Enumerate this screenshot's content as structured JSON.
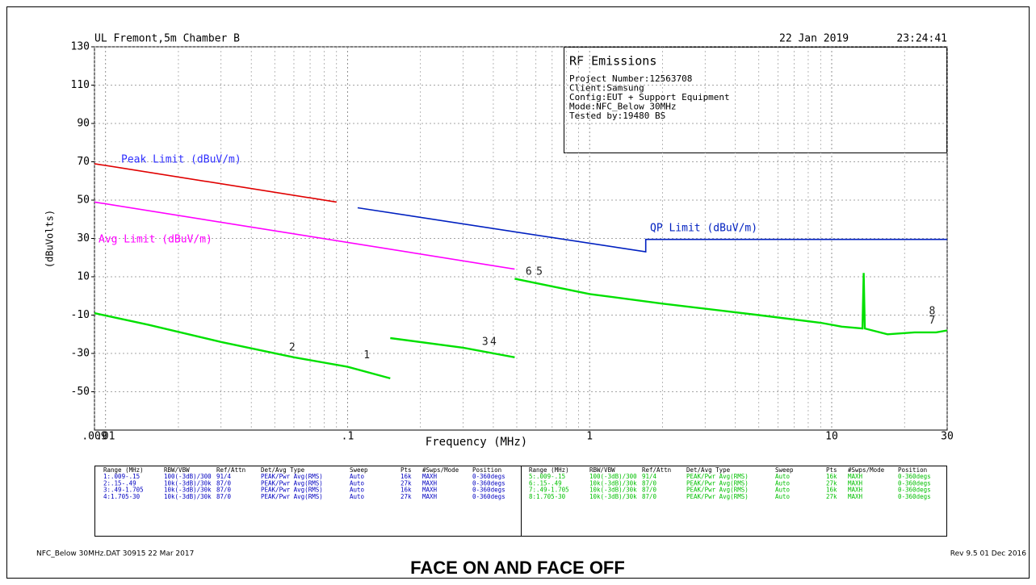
{
  "chart_data": {
    "type": "line",
    "x_label": "Frequency (MHz)",
    "y_label": "(dBuVolts)",
    "log_x": true,
    "grid": true,
    "xlim": [
      0.009,
      30
    ],
    "ylim": [
      -70,
      130
    ],
    "xticks": [
      {
        "value": 0.009,
        "label": ".009"
      },
      {
        "value": 0.01,
        "label": ".01"
      },
      {
        "value": 0.1,
        "label": ".1"
      },
      1,
      10,
      30
    ],
    "yticks": [
      130,
      110,
      90,
      70,
      50,
      30,
      10,
      -10,
      -30,
      -50
    ],
    "series": [
      {
        "name": "Peak Limit (dBuV/m)",
        "color": "#e00000",
        "label_color": "#3030ff",
        "x": [
          0.009,
          0.09
        ],
        "values": [
          69,
          49
        ]
      },
      {
        "name": "Avg Limit (dBuV/m)",
        "color": "#ff00ff",
        "label_color": "#ff00ff",
        "x": [
          0.009,
          0.49
        ],
        "values": [
          49,
          14
        ]
      },
      {
        "name": "QP Limit (dBuV/m)",
        "color": "#0020c0",
        "label_color": "#0020c0",
        "x": [
          0.11,
          1.705,
          1.705,
          30
        ],
        "values": [
          46,
          23,
          29.5,
          29.5
        ]
      },
      {
        "color": "#00e000",
        "x": [
          0.009,
          0.015,
          0.03,
          0.06,
          0.1,
          0.15,
          null,
          0.15,
          0.3,
          0.49,
          null,
          0.49,
          1,
          2,
          5,
          9,
          11,
          13.4,
          13.56,
          13.7,
          17,
          22,
          27,
          30
        ],
        "values": [
          -9,
          -15,
          -24,
          -32,
          -37,
          -43,
          null,
          -22,
          -27,
          -32,
          null,
          9,
          1,
          -4,
          -10,
          -14,
          -16,
          -17,
          12,
          -17,
          -20,
          -19,
          -19,
          -18
        ]
      }
    ],
    "markers": [
      {
        "label": "1",
        "x": 0.12,
        "y": -31
      },
      {
        "label": "2",
        "x": 0.059,
        "y": -27
      },
      {
        "label": "3",
        "x": 0.37,
        "y": -24
      },
      {
        "label": "4",
        "x": 0.4,
        "y": -24
      },
      {
        "label": "6",
        "x": 0.56,
        "y": 12.5
      },
      {
        "label": "5",
        "x": 0.62,
        "y": 12.5
      },
      {
        "label": "8",
        "x": 26,
        "y": -8
      },
      {
        "label": "7",
        "x": 26,
        "y": -13
      }
    ]
  },
  "header": {
    "site": "UL Fremont,5m Chamber B",
    "date": "22 Jan 2019",
    "time": "23:24:41"
  },
  "info_box": {
    "title": "RF Emissions",
    "lines": [
      "Project Number:12563708",
      "Client:Samsung",
      "Config:EUT + Support Equipment",
      "Mode:NFC_Below 30MHz",
      "Tested by:19480 BS"
    ]
  },
  "settings_table": {
    "columns": [
      "Range (MHz)",
      "RBW/VBW",
      "Ref/Attn",
      "Det/Avg Type",
      "Sweep",
      "Pts",
      "#Swps/Mode",
      "Position"
    ],
    "left_rows": [
      [
        "1:.009-.15",
        "100(-3dB)/300",
        "91/4",
        "PEAK/Pwr Avg(RMS)",
        "Auto",
        "16k",
        "MAXH",
        "0-360degs"
      ],
      [
        "2:.15-.49",
        "10k(-3dB)/30k",
        "87/0",
        "PEAK/Pwr Avg(RMS)",
        "Auto",
        "27k",
        "MAXH",
        "0-360degs"
      ],
      [
        "3:.49-1.705",
        "10k(-3dB)/30k",
        "87/0",
        "PEAK/Pwr Avg(RMS)",
        "Auto",
        "16k",
        "MAXH",
        "0-360degs"
      ],
      [
        "4:1.705-30",
        "10k(-3dB)/30k",
        "87/0",
        "PEAK/Pwr Avg(RMS)",
        "Auto",
        "27k",
        "MAXH",
        "0-360degs"
      ]
    ],
    "right_rows": [
      [
        "5:.009-.15",
        "100(-3dB)/300",
        "91/4",
        "PEAK/Pwr Avg(RMS)",
        "Auto",
        "16k",
        "MAXH",
        "0-360degs"
      ],
      [
        "6:.15-.49",
        "10k(-3dB)/30k",
        "87/0",
        "PEAK/Pwr Avg(RMS)",
        "Auto",
        "27k",
        "MAXH",
        "0-360degs"
      ],
      [
        "7:.49-1.705",
        "10k(-3dB)/30k",
        "87/0",
        "PEAK/Pwr Avg(RMS)",
        "Auto",
        "16k",
        "MAXH",
        "0-360degs"
      ],
      [
        "8:1.705-30",
        "10k(-3dB)/30k",
        "87/0",
        "PEAK/Pwr Avg(RMS)",
        "Auto",
        "27k",
        "MAXH",
        "0-360degs"
      ]
    ]
  },
  "footer": {
    "left": "NFC_Below 30MHz.DAT 30915 22 Mar 2017",
    "right": "Rev 9.5 01 Dec 2016"
  },
  "caption": "FACE ON AND FACE OFF"
}
